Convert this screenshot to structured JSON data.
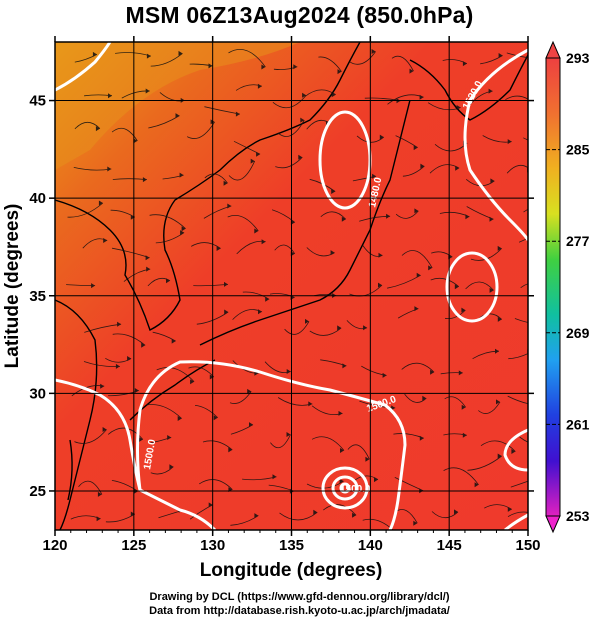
{
  "title": "MSM 06Z13Aug2024 (850.0hPa)",
  "map": {
    "lon_range": [
      120,
      150
    ],
    "lat_range": [
      23,
      48
    ],
    "x_ticks": [
      "120",
      "125",
      "130",
      "135",
      "140",
      "145",
      "150"
    ],
    "y_ticks": [
      "25",
      "30",
      "35",
      "40",
      "45"
    ],
    "x_label": "Longitude (degrees)",
    "y_label": "Latitude  (degrees)",
    "grid": true,
    "fill_color": "#ee3a2a",
    "isohypse_labels": [
      "1520.0",
      "1480.0",
      "1500.0",
      "1500.0",
      "1500.0"
    ]
  },
  "colorbar": {
    "ticks": [
      "293",
      "285",
      "277",
      "269",
      "261",
      "253"
    ],
    "max_color": "#ee4444",
    "min_color": "#ee22cc"
  },
  "footer": {
    "line1": "Drawing by DCL (https://www.gfd-dennou.org/library/dcl/)",
    "line2": "Data from http://database.rish.kyoto-u.ac.jp/arch/jmadata/"
  }
}
